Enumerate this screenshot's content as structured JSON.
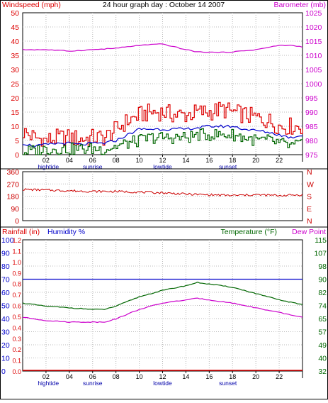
{
  "colors": {
    "wind": "#dd0000",
    "gust": "#0000cc",
    "avg": "#006600",
    "baro": "#cc00cc",
    "dir": "#cc0000",
    "rain": "#dd0000",
    "humid": "#0000cc",
    "temp": "#006600",
    "dew": "#cc00cc",
    "tide": "#0000cc",
    "frame": "#000000"
  },
  "chart_data": [
    {
      "type": "line",
      "title": "24 hour graph day : October 14 2007",
      "left_axis_label": "Windspeed (mph)",
      "right_axis_label": "Barometer (mb)",
      "left_ticks": [
        "50",
        "45",
        "40",
        "35",
        "30",
        "25",
        "20",
        "15",
        "10",
        "5",
        "0"
      ],
      "right_ticks": [
        "1025",
        "1020",
        "1015",
        "1010",
        "1005",
        "1000",
        "995",
        "990",
        "985",
        "980",
        "975"
      ],
      "ylim_left": [
        0,
        50
      ],
      "ylim_right": [
        975,
        1025
      ],
      "x_ticks": [
        "02",
        "04",
        "06",
        "08",
        "10",
        "12",
        "14",
        "16",
        "18",
        "20",
        "22",
        ""
      ],
      "x_annotations": [
        {
          "hour": 2.2,
          "label": "hightide"
        },
        {
          "hour": 6.0,
          "label": "sunrise"
        },
        {
          "hour": 12.0,
          "label": "lowtide"
        },
        {
          "hour": 17.6,
          "label": "sunset"
        }
      ],
      "xlim_hours": [
        0,
        24
      ],
      "series": [
        {
          "key": "baro",
          "values": [
            [
              0,
              1012
            ],
            [
              2,
              1012
            ],
            [
              4,
              1011.5
            ],
            [
              6,
              1012
            ],
            [
              8,
              1012.5
            ],
            [
              10,
              1013.5
            ],
            [
              12,
              1014
            ],
            [
              13,
              1013
            ],
            [
              14,
              1012
            ],
            [
              15,
              1011.2
            ],
            [
              17,
              1011
            ],
            [
              18,
              1011.2
            ],
            [
              20,
              1012
            ],
            [
              22,
              1013.5
            ],
            [
              23,
              1013.5
            ],
            [
              24,
              1013
            ]
          ]
        },
        {
          "key": "wind",
          "values": [
            [
              0,
              8
            ],
            [
              1,
              6
            ],
            [
              2,
              5
            ],
            [
              3,
              6
            ],
            [
              4,
              6
            ],
            [
              5,
              5.5
            ],
            [
              6,
              6
            ],
            [
              7,
              6
            ],
            [
              8,
              9
            ],
            [
              9,
              12
            ],
            [
              10,
              14
            ],
            [
              11,
              15
            ],
            [
              12,
              15
            ],
            [
              13,
              14
            ],
            [
              14,
              14
            ],
            [
              15,
              15
            ],
            [
              16,
              15
            ],
            [
              17,
              16
            ],
            [
              18,
              15
            ],
            [
              19,
              14
            ],
            [
              20,
              13
            ],
            [
              21,
              12
            ],
            [
              22,
              10
            ],
            [
              23,
              10
            ],
            [
              24,
              10
            ]
          ]
        },
        {
          "key": "gust",
          "values": [
            [
              0,
              4
            ],
            [
              1,
              3
            ],
            [
              2,
              3.5
            ],
            [
              3,
              4
            ],
            [
              4,
              4
            ],
            [
              5,
              3.5
            ],
            [
              6,
              4
            ],
            [
              7,
              4
            ],
            [
              8,
              5
            ],
            [
              9,
              7
            ],
            [
              10,
              9
            ],
            [
              11,
              9
            ],
            [
              12,
              9
            ],
            [
              13,
              9
            ],
            [
              14,
              9
            ],
            [
              15,
              9.5
            ],
            [
              16,
              10
            ],
            [
              17,
              10
            ],
            [
              18,
              10
            ],
            [
              19,
              9
            ],
            [
              20,
              8.5
            ],
            [
              21,
              8
            ],
            [
              22,
              7
            ],
            [
              23,
              6
            ],
            [
              24,
              7
            ]
          ]
        },
        {
          "key": "avg",
          "values": [
            [
              0,
              1
            ],
            [
              1,
              1.5
            ],
            [
              2,
              2
            ],
            [
              3,
              2
            ],
            [
              4,
              2
            ],
            [
              5,
              2
            ],
            [
              6,
              2
            ],
            [
              7,
              2
            ],
            [
              8,
              3
            ],
            [
              9,
              4
            ],
            [
              10,
              5
            ],
            [
              11,
              6
            ],
            [
              12,
              6
            ],
            [
              13,
              6
            ],
            [
              14,
              6
            ],
            [
              15,
              7
            ],
            [
              16,
              7
            ],
            [
              17,
              7
            ],
            [
              18,
              7
            ],
            [
              19,
              6
            ],
            [
              20,
              5
            ],
            [
              21,
              5
            ],
            [
              22,
              4
            ],
            [
              23,
              3
            ],
            [
              24,
              4
            ]
          ]
        }
      ]
    },
    {
      "type": "line",
      "left_ticks": [
        "360",
        "270",
        "180",
        "90",
        "0"
      ],
      "right_ticks": [
        "N",
        "W",
        "S",
        "E",
        "N"
      ],
      "ylim": [
        0,
        360
      ],
      "xlim_hours": [
        0,
        24
      ],
      "series": [
        {
          "key": "dir",
          "values": [
            [
              0,
              230
            ],
            [
              2,
              225
            ],
            [
              4,
              220
            ],
            [
              6,
              215
            ],
            [
              8,
              215
            ],
            [
              10,
              210
            ],
            [
              12,
              205
            ],
            [
              14,
              195
            ],
            [
              16,
              190
            ],
            [
              18,
              185
            ],
            [
              20,
              190
            ],
            [
              22,
              185
            ],
            [
              24,
              190
            ]
          ]
        }
      ]
    },
    {
      "type": "line",
      "left_axis_label_1": "Rainfall (in)",
      "left_axis_label_2": "Humidity %",
      "right_axis_label_1": "Temperature (°F)",
      "right_axis_label_2": "Dew Point",
      "humidity_ticks": [
        "100",
        "90",
        "80",
        "70",
        "60",
        "50",
        "40",
        "30",
        "20",
        "10",
        "0"
      ],
      "rain_ticks": [
        "1.2",
        "1.1",
        "1.0",
        "0.9",
        "0.8",
        "0.7",
        "0.6",
        "0.5",
        "0.4",
        "0.3",
        "0.2",
        "0.1",
        "0.0"
      ],
      "temp_ticks": [
        "115",
        "107",
        "98",
        "90",
        "82",
        "74",
        "65",
        "57",
        "49",
        "40",
        "32"
      ],
      "ylim_humidity": [
        0,
        100
      ],
      "ylim_rain": [
        0,
        1.2
      ],
      "ylim_temp": [
        32,
        115
      ],
      "x_ticks": [
        "02",
        "04",
        "06",
        "08",
        "10",
        "12",
        "14",
        "16",
        "18",
        "20",
        "22",
        ""
      ],
      "x_annotations": [
        {
          "hour": 2.2,
          "label": "hightide"
        },
        {
          "hour": 6.0,
          "label": "sunrise"
        },
        {
          "hour": 12.0,
          "label": "lowtide"
        },
        {
          "hour": 17.6,
          "label": "sunset"
        }
      ],
      "xlim_hours": [
        0,
        24
      ],
      "series": [
        {
          "key": "humid",
          "values": [
            [
              0,
              70
            ],
            [
              24,
              70
            ]
          ]
        },
        {
          "key": "rain",
          "values": [
            [
              0,
              0
            ],
            [
              24,
              0
            ]
          ]
        },
        {
          "key": "temp",
          "values": [
            [
              0,
              75
            ],
            [
              2,
              73
            ],
            [
              4,
              72
            ],
            [
              6,
              71
            ],
            [
              7,
              71
            ],
            [
              8,
              73
            ],
            [
              10,
              79
            ],
            [
              12,
              83
            ],
            [
              14,
              86
            ],
            [
              15,
              88
            ],
            [
              16,
              87
            ],
            [
              18,
              85
            ],
            [
              20,
              81
            ],
            [
              22,
              77
            ],
            [
              24,
              74
            ]
          ]
        },
        {
          "key": "dew",
          "values": [
            [
              0,
              66
            ],
            [
              2,
              64
            ],
            [
              4,
              63
            ],
            [
              6,
              63
            ],
            [
              7,
              63
            ],
            [
              8,
              65
            ],
            [
              10,
              71
            ],
            [
              12,
              75
            ],
            [
              14,
              77
            ],
            [
              15,
              78
            ],
            [
              16,
              77
            ],
            [
              18,
              75
            ],
            [
              20,
              72
            ],
            [
              22,
              69
            ],
            [
              24,
              66
            ]
          ]
        }
      ]
    }
  ]
}
